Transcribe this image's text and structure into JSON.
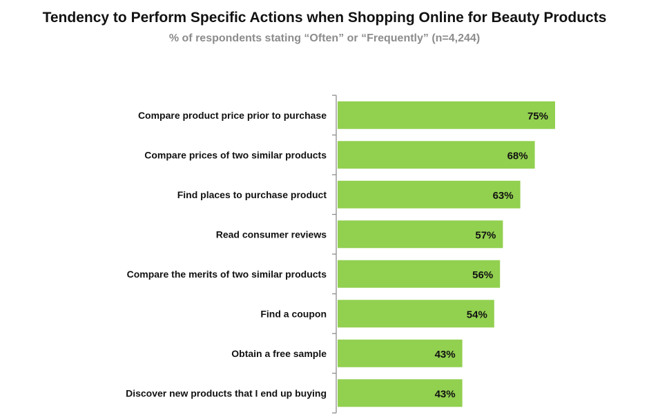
{
  "chart_data": {
    "type": "bar",
    "orientation": "horizontal",
    "title": "Tendency to Perform Specific Actions when Shopping Online for Beauty Products",
    "subtitle": "% of respondents stating “Often” or “Frequently” (n=4,244)",
    "categories": [
      "Compare product price prior to purchase",
      "Compare prices of two similar products",
      "Find places to purchase product",
      "Read consumer reviews",
      "Compare the merits of two similar products",
      "Find a coupon",
      "Obtain a free sample",
      "Discover new products that I end up buying"
    ],
    "values": [
      75,
      68,
      63,
      57,
      56,
      54,
      43,
      43
    ],
    "value_labels": [
      "75%",
      "68%",
      "63%",
      "57%",
      "56%",
      "54%",
      "43%",
      "43%"
    ],
    "xlim": [
      0,
      100
    ],
    "grid": false,
    "legend": "none",
    "bar_color": "#92d050",
    "axis_color": "#8c8c8c"
  }
}
